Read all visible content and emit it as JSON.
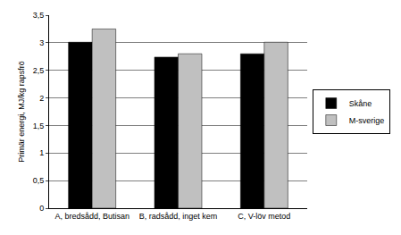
{
  "chart_data": {
    "type": "bar",
    "y_label": "Primär energi, MJ/kg rapsfrö",
    "categories": [
      "A, bredsådd, Butisan",
      "B, radsådd, inget kem",
      "C, V-löv metod"
    ],
    "series": [
      {
        "name": "Skåne",
        "color": "#000000",
        "values": [
          3.01,
          2.74,
          2.8
        ]
      },
      {
        "name": "M-sverige",
        "color": "#c0c0c0",
        "values": [
          3.25,
          2.8,
          3.01
        ]
      }
    ],
    "ylim": [
      0,
      3.5
    ],
    "yticks": [
      0,
      {
        "value": 0.5,
        "label": "0,5"
      },
      1,
      {
        "value": 1.5,
        "label": "1,5"
      },
      2,
      {
        "value": 2.5,
        "label": "2,5"
      },
      3,
      {
        "value": 3.5,
        "label": "3,5"
      }
    ],
    "grid": true,
    "legend": "right"
  }
}
